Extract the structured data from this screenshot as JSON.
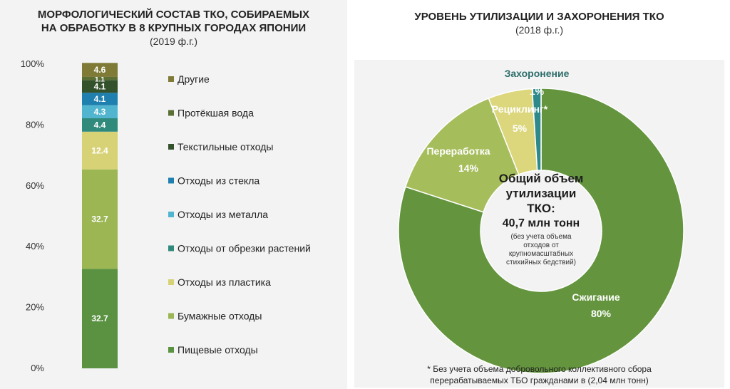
{
  "left": {
    "title_line1": "МОРФОЛОГИЧЕСКИЙ СОСТАВ ТКО, СОБИРАЕМЫХ",
    "title_line2": "НА ОБРАБОТКУ В 8 КРУПНЫХ ГОРОДАХ ЯПОНИИ",
    "subtitle": "(2019 ф.г.)"
  },
  "right": {
    "title": "УРОВЕНЬ УТИЛИЗАЦИИ И ЗАХОРОНЕНИЯ ТКО",
    "subtitle": "(2018 ф.г.)",
    "center_line1": "Общий объем",
    "center_line2": "утилизации",
    "center_line3": "ТКО:",
    "center_line4": "40,7 млн тонн",
    "center_note1": "(без учета объема",
    "center_note2": "отходов от",
    "center_note3": "крупномасштабных",
    "center_note4": "стихийных бедствий)",
    "footnote_line1": "* Без учета объема добровольного коллективного сбора",
    "footnote_line2": "перерабатываемых ТБО гражданами в  (2,04 млн тонн)"
  },
  "chart_data": [
    {
      "type": "bar",
      "stacked": true,
      "ylim": [
        0,
        100
      ],
      "yticks": [
        "0%",
        "20%",
        "40%",
        "60%",
        "80%",
        "100%"
      ],
      "yticks_values": [
        0,
        20,
        40,
        60,
        80,
        100
      ],
      "legend_position": "right",
      "series": [
        {
          "name": "Пищевые отходы",
          "value": 32.7,
          "label": "32.7",
          "color": "#5b9241"
        },
        {
          "name": "Бумажные отходы",
          "value": 32.7,
          "label": "32.7",
          "color": "#9bb653"
        },
        {
          "name": "Отходы из пластика",
          "value": 12.4,
          "label": "12.4",
          "color": "#d8d277"
        },
        {
          "name": "Отходы от обрезки растений",
          "value": 4.4,
          "label": "4.4",
          "color": "#2f8a7c"
        },
        {
          "name": "Отходы из металла",
          "value": 4.3,
          "label": "4.3",
          "color": "#52b5cf"
        },
        {
          "name": "Отходы из стекла",
          "value": 4.1,
          "label": "4.1",
          "color": "#1f7fae"
        },
        {
          "name": "Текстильные отходы",
          "value": 4.1,
          "label": "4.1",
          "color": "#33512a"
        },
        {
          "name": "Протёкшая вода",
          "value": 1.1,
          "label": "1.1",
          "color": "#5a6e35"
        },
        {
          "name": "Другие",
          "value": 4.6,
          "label": "4.6",
          "color": "#7f7a36"
        }
      ],
      "legend_order": [
        8,
        7,
        6,
        5,
        4,
        3,
        2,
        1,
        0
      ]
    },
    {
      "type": "pie",
      "donut": true,
      "slices": [
        {
          "name": "Сжигание",
          "value": 80,
          "label": "80%",
          "color": "#64953e"
        },
        {
          "name": "Переработка",
          "value": 14,
          "label": "14%",
          "color": "#a6bd5c"
        },
        {
          "name": "Рециклинг*",
          "value": 5,
          "label": "5%",
          "color": "#dcd67d"
        },
        {
          "name": "Захоронение",
          "value": 1,
          "label": "1%",
          "color": "#2e8a8a"
        }
      ]
    }
  ]
}
